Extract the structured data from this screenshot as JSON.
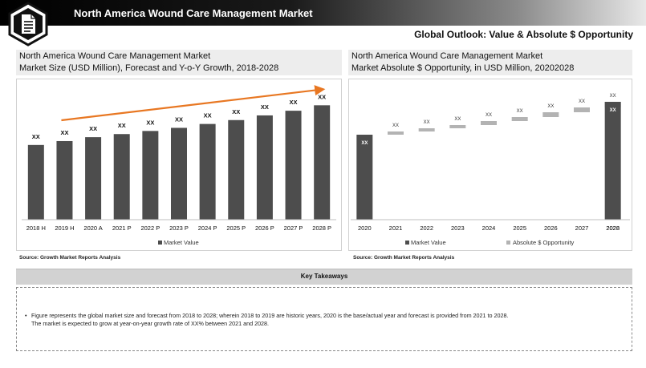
{
  "header": {
    "title": "North America Wound Care Management Market",
    "subtitle": "Global Outlook: Value & Absolute $ Opportunity"
  },
  "icons": {
    "logo": "document-icon"
  },
  "left_panel": {
    "line1": "North America Wound Care Management Market",
    "line2": "Market Size (USD Million), Forecast and Y-o-Y Growth, 2018-2028",
    "source": "Source: Growth Market Reports Analysis"
  },
  "right_panel": {
    "line1": "North America Wound Care Management Market",
    "line2": "Market Absolute $ Opportunity, in USD Million, 20202028",
    "source": "Source: Growth Market Reports Analysis"
  },
  "takeaways": {
    "label": "Key Takeaways",
    "items": [
      "Figure represents the global market size and forecast from 2018 to 2028; wherein 2018 to 2019 are historic years, 2020 is the base/actual year and forecast is provided from 2021 to 2028.",
      "The market is expected to grow at year-on-year growth rate of XX% between 2021 and 2028."
    ]
  },
  "chart_data": [
    {
      "type": "bar",
      "categories": [
        "2018 H",
        "2019 H",
        "2020 A",
        "2021 P",
        "2022 P",
        "2023 P",
        "2024 P",
        "2025 P",
        "2026 P",
        "2027 P",
        "2028 P"
      ],
      "series": [
        {
          "name": "Market Value",
          "values": [
            96,
            101,
            106,
            110,
            114,
            118,
            123,
            128,
            134,
            140,
            147
          ],
          "color": "#4d4d4d"
        }
      ],
      "data_labels": [
        "XX",
        "XX",
        "XX",
        "XX",
        "XX",
        "XX",
        "XX",
        "XX",
        "XX",
        "XX",
        "XX"
      ],
      "ylim": [
        0,
        170
      ],
      "trend_arrow_color": "#e87722",
      "legend": "bottom",
      "grid": false
    },
    {
      "type": "bar",
      "subtype": "waterfall",
      "categories": [
        "2020",
        "2021",
        "2022",
        "2023",
        "2024",
        "2025",
        "2026",
        "2027",
        "2028"
      ],
      "series": [
        {
          "name": "Market Value",
          "color": "#4d4d4d"
        },
        {
          "name": "Absolute $ Opportunity",
          "color": "#b3b3b3"
        }
      ],
      "start_value": 106,
      "increments": [
        4,
        4,
        4,
        5,
        5,
        6,
        6,
        7
      ],
      "end_value": 147,
      "data_labels": [
        "XX",
        "XX",
        "XX",
        "XX",
        "XX",
        "XX",
        "XX",
        "XX",
        "XX"
      ],
      "ylim": [
        0,
        165
      ],
      "legend": "bottom",
      "grid": false
    }
  ]
}
